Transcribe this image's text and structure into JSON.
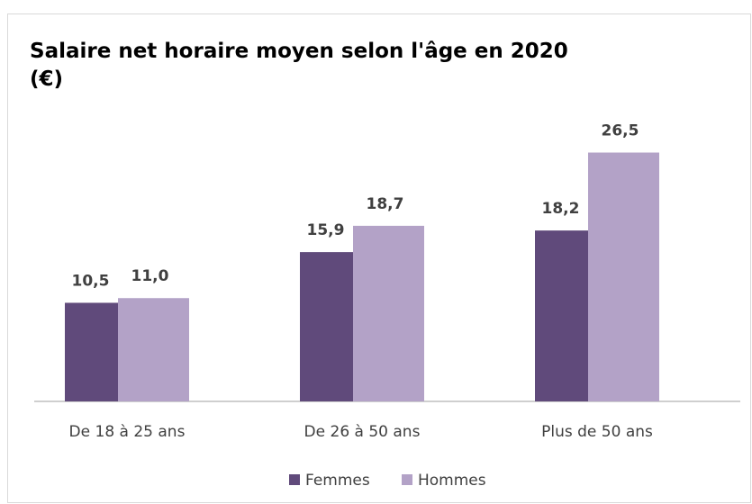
{
  "chart_data": {
    "type": "bar",
    "title": "Salaire net horaire moyen selon l'âge en 2020 (€)",
    "categories": [
      "De 18 à 25 ans",
      "De 26 à 50 ans",
      "Plus de 50 ans"
    ],
    "series": [
      {
        "name": "Femmes",
        "color": "#604a7b",
        "values": [
          10.5,
          15.9,
          18.2
        ],
        "value_labels": [
          "10,5",
          "15,9",
          "18,2"
        ]
      },
      {
        "name": "Hommes",
        "color": "#b3a2c7",
        "values": [
          11.0,
          18.7,
          26.5
        ],
        "value_labels": [
          "11,0",
          "18,7",
          "26,5"
        ]
      }
    ],
    "ylim": [
      0,
      30
    ],
    "legend": "bottom"
  }
}
